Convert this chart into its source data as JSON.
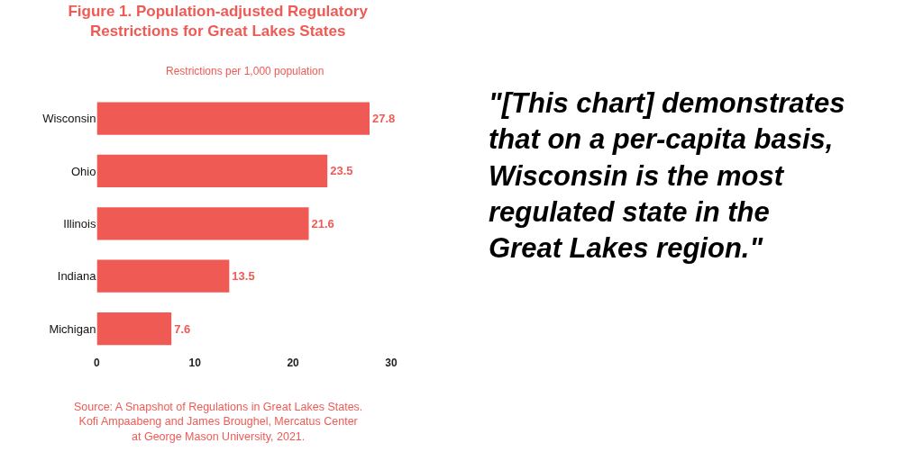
{
  "chart_data": {
    "type": "bar",
    "orientation": "horizontal",
    "title": "Figure 1. Population-adjusted Regulatory\nRestrictions for Great Lakes States",
    "subtitle": "Restrictions per 1,000 population",
    "categories": [
      "Wisconsin",
      "Ohio",
      "Illinois",
      "Indiana",
      "Michigan"
    ],
    "values": [
      27.8,
      23.5,
      21.6,
      13.5,
      7.6
    ],
    "color": "#f05a55",
    "data_labels": true,
    "xlim": [
      0,
      30
    ],
    "xticks": [
      0,
      10,
      20,
      30
    ],
    "annotations": [
      "Source: A Snapshot of Regulations in Great Lakes States.\nKofi Ampaabeng and James Broughel, Mercatus Center\nat George Mason University, 2021.",
      "\"[This chart] demonstrates\nthat on a per-capita basis,\nWisconsin is the most\nregulated state in the\nGreat Lakes region.\""
    ]
  }
}
